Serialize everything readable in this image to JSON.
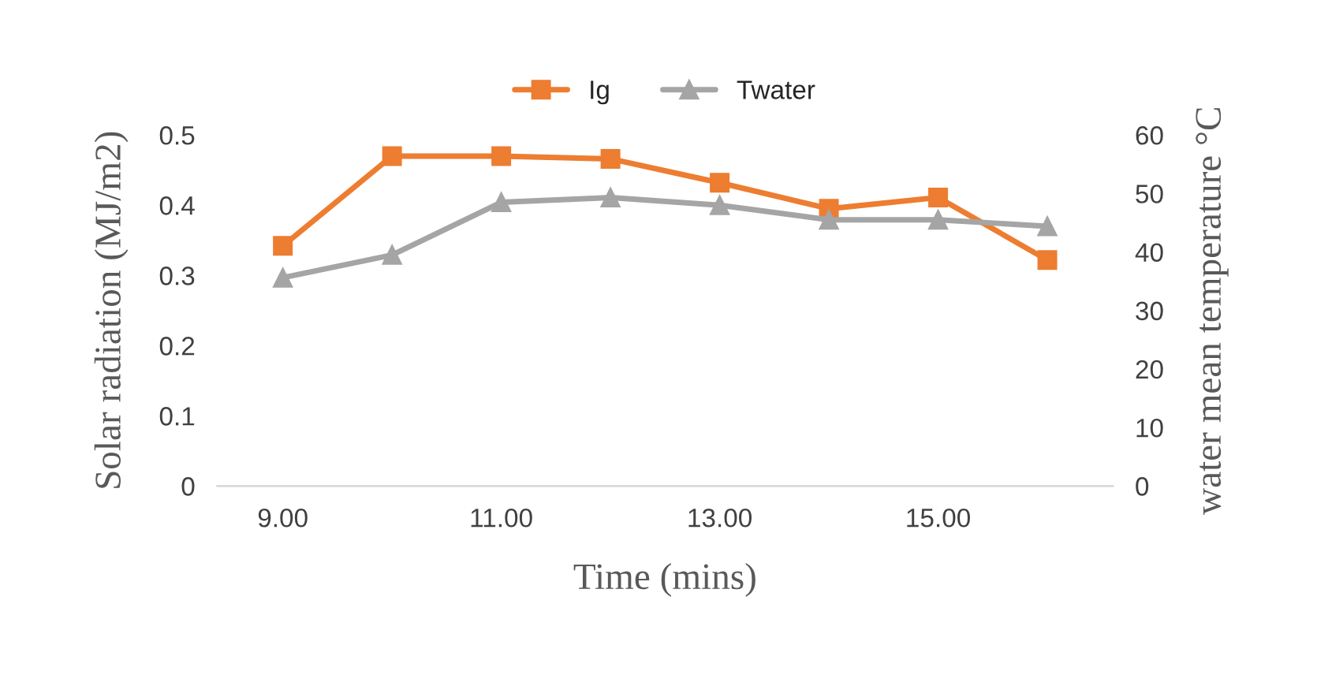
{
  "chart_data": {
    "type": "line",
    "xlabel": "Time (mins)",
    "ylabel": "Solar radiation (MJ/m2)",
    "y2label": "water mean temperature °C",
    "categories": [
      "9.00",
      null,
      "11.00",
      null,
      "13.00",
      null,
      "15.00",
      null
    ],
    "series": [
      {
        "name": "Ig",
        "color": "#ed7d31",
        "marker": "square",
        "values": [
          0.342,
          0.47,
          0.47,
          0.466,
          0.432,
          0.395,
          0.411,
          0.322
        ]
      },
      {
        "name": "Twater",
        "color": "#a5a5a5",
        "marker": "triangle",
        "axis": "y2",
        "values": [
          35.6,
          39.5,
          48.5,
          49.3,
          48,
          45.5,
          45.5,
          44.4
        ]
      }
    ],
    "ylim": [
      0,
      0.5
    ],
    "yticks": [
      0,
      0.1,
      0.2,
      0.3,
      0.4,
      0.5
    ],
    "y2lim": [
      0,
      60
    ],
    "y2ticks": [
      0,
      10,
      20,
      30,
      40,
      50,
      60
    ],
    "grid": false,
    "legend": "top"
  }
}
